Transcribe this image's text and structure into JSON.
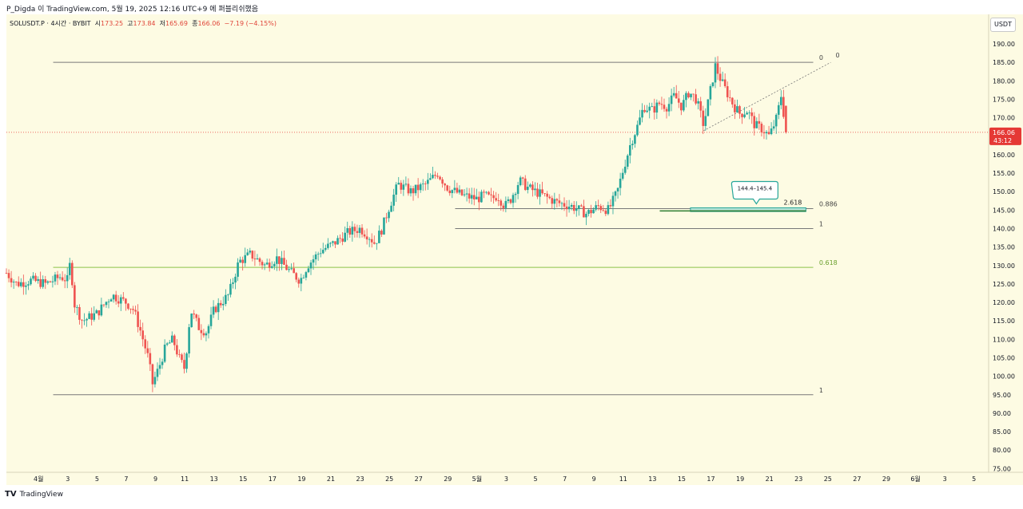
{
  "header": {
    "publish_line": "P_Digda 이 TradingView.com, 5월 19, 2025 12:16 UTC+9 에 퍼블리쉬했음"
  },
  "legend": {
    "symbol": "SOLUSDT.P · 4시간 · BYBIT",
    "open_label": "시",
    "open": "173.25",
    "high_label": "고",
    "high": "173.84",
    "low_label": "저",
    "low": "165.69",
    "close_label": "종",
    "close": "166.06",
    "change": "−7.19 (−4.15%)"
  },
  "price_axis": {
    "unit": "USDT",
    "current_price": "166.06",
    "countdown": "43:12"
  },
  "footer": {
    "brand": "TradingView",
    "logo": "𝗧𝗩"
  },
  "colors": {
    "background": "#fdfbe3",
    "up": "#26a69a",
    "down": "#ef5350",
    "price_label": "#e53935",
    "fib_line": "#787878",
    "fib_0618": "#8bc34a",
    "annotation": "#26a69a"
  },
  "chart_data": {
    "type": "candlestick",
    "symbol": "SOLUSDT.P",
    "timeframe": "4시간",
    "exchange": "BYBIT",
    "ylim": [
      74,
      198
    ],
    "y_ticks": [
      75,
      80,
      85,
      90,
      95,
      100,
      105,
      110,
      115,
      120,
      125,
      130,
      135,
      140,
      145,
      150,
      155,
      160,
      165,
      170,
      175,
      180,
      185,
      190
    ],
    "x_ticks": [
      "4월",
      "3",
      "5",
      "7",
      "9",
      "11",
      "13",
      "15",
      "17",
      "19",
      "21",
      "23",
      "25",
      "27",
      "29",
      "5월",
      "3",
      "5",
      "7",
      "9",
      "11",
      "13",
      "15",
      "17",
      "19",
      "21",
      "23",
      "25",
      "27",
      "29",
      "6월",
      "3",
      "5"
    ],
    "x_tick_days": [
      -5,
      -3,
      -1,
      1,
      3,
      5,
      7,
      9,
      11,
      13,
      15,
      17,
      19,
      21,
      23,
      25,
      27,
      29,
      31,
      33,
      35,
      37,
      39,
      41,
      43,
      45,
      47,
      49,
      51,
      53,
      55,
      57,
      59
    ],
    "x_range_days": [
      -7.2,
      60
    ],
    "close_anchors": [
      {
        "day": -7.2,
        "close": 128
      },
      {
        "day": -6.5,
        "close": 125
      },
      {
        "day": -5.5,
        "close": 126
      },
      {
        "day": -4.5,
        "close": 125
      },
      {
        "day": -3.5,
        "close": 127
      },
      {
        "day": -3.0,
        "close": 126
      },
      {
        "day": -2.8,
        "close": 132
      },
      {
        "day": -2.6,
        "close": 120
      },
      {
        "day": -2.0,
        "close": 115
      },
      {
        "day": -1.0,
        "close": 117
      },
      {
        "day": 0.0,
        "close": 122
      },
      {
        "day": 1.0,
        "close": 120
      },
      {
        "day": 1.5,
        "close": 118
      },
      {
        "day": 2.0,
        "close": 112
      },
      {
        "day": 2.5,
        "close": 105
      },
      {
        "day": 2.8,
        "close": 98
      },
      {
        "day": 3.2,
        "close": 102
      },
      {
        "day": 3.7,
        "close": 108
      },
      {
        "day": 4.2,
        "close": 110
      },
      {
        "day": 4.6,
        "close": 105
      },
      {
        "day": 5.0,
        "close": 102
      },
      {
        "day": 5.4,
        "close": 118
      },
      {
        "day": 6.0,
        "close": 113
      },
      {
        "day": 6.5,
        "close": 112
      },
      {
        "day": 7.0,
        "close": 118
      },
      {
        "day": 8.0,
        "close": 122
      },
      {
        "day": 8.7,
        "close": 131
      },
      {
        "day": 9.5,
        "close": 133
      },
      {
        "day": 10.5,
        "close": 130
      },
      {
        "day": 11.3,
        "close": 132
      },
      {
        "day": 12.3,
        "close": 128
      },
      {
        "day": 12.9,
        "close": 126
      },
      {
        "day": 13.4,
        "close": 130
      },
      {
        "day": 14.3,
        "close": 134
      },
      {
        "day": 15.2,
        "close": 136
      },
      {
        "day": 16.2,
        "close": 139
      },
      {
        "day": 17.0,
        "close": 140
      },
      {
        "day": 17.6,
        "close": 138
      },
      {
        "day": 18.0,
        "close": 136
      },
      {
        "day": 18.5,
        "close": 140
      },
      {
        "day": 19.0,
        "close": 146
      },
      {
        "day": 19.6,
        "close": 152
      },
      {
        "day": 20.5,
        "close": 150
      },
      {
        "day": 21.5,
        "close": 152
      },
      {
        "day": 22.3,
        "close": 155
      },
      {
        "day": 23.0,
        "close": 151
      },
      {
        "day": 24.0,
        "close": 149
      },
      {
        "day": 25.0,
        "close": 148
      },
      {
        "day": 25.5,
        "close": 149
      },
      {
        "day": 26.0,
        "close": 148
      },
      {
        "day": 26.4,
        "close": 149
      },
      {
        "day": 26.9,
        "close": 146
      },
      {
        "day": 27.3,
        "close": 148
      },
      {
        "day": 27.9,
        "close": 153
      },
      {
        "day": 28.5,
        "close": 151
      },
      {
        "day": 29.5,
        "close": 149
      },
      {
        "day": 30.5,
        "close": 147
      },
      {
        "day": 31.5,
        "close": 146
      },
      {
        "day": 32.5,
        "close": 144
      },
      {
        "day": 33.3,
        "close": 146
      },
      {
        "day": 34.0,
        "close": 145
      },
      {
        "day": 34.6,
        "close": 150
      },
      {
        "day": 35.0,
        "close": 156
      },
      {
        "day": 35.5,
        "close": 163
      },
      {
        "day": 36.0,
        "close": 168
      },
      {
        "day": 36.4,
        "close": 173
      },
      {
        "day": 37.0,
        "close": 172
      },
      {
        "day": 37.5,
        "close": 174
      },
      {
        "day": 38.0,
        "close": 173
      },
      {
        "day": 38.5,
        "close": 176
      },
      {
        "day": 39.0,
        "close": 173
      },
      {
        "day": 39.5,
        "close": 177
      },
      {
        "day": 40.0,
        "close": 175
      },
      {
        "day": 40.5,
        "close": 168
      },
      {
        "day": 40.9,
        "close": 176
      },
      {
        "day": 41.3,
        "close": 184
      },
      {
        "day": 41.7,
        "close": 180
      },
      {
        "day": 42.2,
        "close": 176
      },
      {
        "day": 42.6,
        "close": 173
      },
      {
        "day": 43.0,
        "close": 171
      },
      {
        "day": 43.5,
        "close": 172
      },
      {
        "day": 44.0,
        "close": 168
      },
      {
        "day": 44.5,
        "close": 167
      },
      {
        "day": 45.0,
        "close": 165
      },
      {
        "day": 45.5,
        "close": 170
      },
      {
        "day": 45.8,
        "close": 176
      },
      {
        "day": 46.15,
        "close": 166.06
      }
    ],
    "fibonacci": [
      {
        "label": "0",
        "price": 185.0,
        "from_day": -4,
        "to_day": 48,
        "label_day": 48.4
      },
      {
        "label": "0.886",
        "price": 145.4,
        "from_day": 23.5,
        "to_day": 48,
        "label_day": 48.4
      },
      {
        "label": "1",
        "price": 140.0,
        "from_day": 23.5,
        "to_day": 48,
        "label_day": 48.4
      },
      {
        "label": "0.618",
        "price": 129.5,
        "from_day": -4,
        "to_day": 48,
        "label_day": 48.4,
        "color": "green"
      },
      {
        "label": "1",
        "price": 95.0,
        "from_day": -4,
        "to_day": 48,
        "label_day": 48.4
      }
    ],
    "extension": {
      "label": "2.618",
      "label_zero": "0",
      "price": 145.0,
      "from_day": 37.5,
      "to_day": 47.5,
      "diagonal": {
        "from_day": 40.5,
        "from_price": 166.5,
        "to_day": 49.2,
        "to_price": 185.0
      }
    },
    "zone": {
      "label": "144.4–145.4",
      "low": 144.4,
      "high": 145.4,
      "from_day": 39.6,
      "to_day": 47.5,
      "callout_day": 44
    }
  }
}
